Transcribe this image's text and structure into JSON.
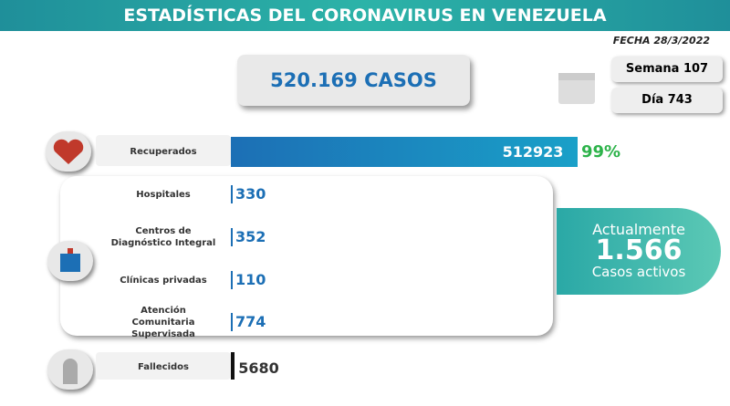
{
  "header": {
    "title": "ESTADÍSTICAS DEL CORONAVIRUS EN VENEZUELA",
    "date": "FECHA 28/3/2022"
  },
  "total": "520.169 CASOS",
  "week": "Semana 107",
  "day": "Día 743",
  "recovered": {
    "label": "Recuperados",
    "value": 512923,
    "percent": "99%"
  },
  "active_breakdown": [
    {
      "label": [
        "Hospitales"
      ],
      "value": "330"
    },
    {
      "label": [
        "Centros de",
        "Diagnóstico Integral"
      ],
      "value": "352"
    },
    {
      "label": [
        "Clínicas privadas"
      ],
      "value": "110"
    },
    {
      "label": [
        "Atención",
        "Comunitaria",
        "Supervisada"
      ],
      "value": "774"
    }
  ],
  "active": {
    "top": "Actualmente",
    "value": "1.566",
    "bottom": "Casos activos"
  },
  "deaths": {
    "label": "Fallecidos",
    "value": 5680
  }
}
